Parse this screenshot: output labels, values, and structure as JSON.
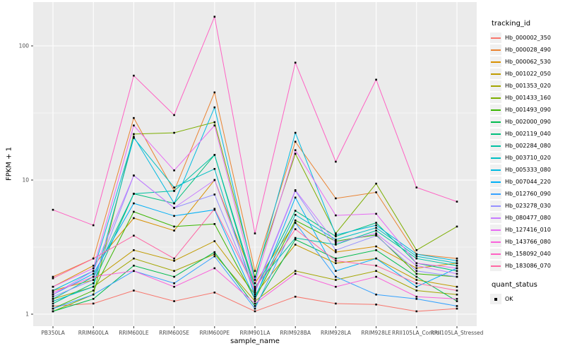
{
  "figure": {
    "background": "#FFFFFF",
    "panel_background": "#EBEBEB",
    "grid_color": "#FFFFFF",
    "axis_text_color": "#4D4D4D",
    "tick_color": "#333333",
    "point_color": "#000000"
  },
  "chart_data": {
    "type": "line",
    "title": "",
    "xlabel": "sample_name",
    "ylabel": "FPKM + 1",
    "y_scale": "log10",
    "y_ticks": [
      "1",
      "10",
      "100"
    ],
    "y_tick_values": [
      1,
      10,
      100
    ],
    "y_minor_values": [
      3.162,
      31.62
    ],
    "ylim": [
      0.81,
      212
    ],
    "grid": true,
    "legend_position": "right",
    "legend_title": "tracking_id",
    "x_categories": [
      "PB350LA",
      "RRIM600LA",
      "RRIM600LE",
      "RRIM600SE",
      "RRIM600PE",
      "RRIM901LA",
      "RRIM928BA",
      "RRIM928LA",
      "RRIM928LE",
      "RRII105LA_Control",
      "RRII105LA_Stressed"
    ],
    "series": [
      {
        "name": "Hb_000002_350",
        "color": "#F8766D",
        "values": [
          1.15,
          1.2,
          1.5,
          1.25,
          1.45,
          1.05,
          1.35,
          1.2,
          1.18,
          1.05,
          1.1
        ]
      },
      {
        "name": "Hb_000028_490",
        "color": "#EA8331",
        "values": [
          1.9,
          2.6,
          29,
          8.3,
          45,
          2.1,
          19.3,
          7.3,
          8.1,
          2.8,
          2.6
        ]
      },
      {
        "name": "Hb_000062_530",
        "color": "#D89000",
        "values": [
          1.6,
          2.3,
          5.2,
          4.2,
          10,
          1.7,
          4.8,
          2.9,
          3.2,
          2.2,
          2.4
        ]
      },
      {
        "name": "Hb_001022_050",
        "color": "#C09B00",
        "values": [
          1.5,
          1.8,
          3.0,
          2.5,
          3.5,
          1.4,
          3.3,
          2.4,
          2.6,
          1.8,
          1.6
        ]
      },
      {
        "name": "Hb_001353_020",
        "color": "#A3A500",
        "values": [
          1.3,
          1.6,
          2.6,
          2.1,
          2.8,
          1.25,
          2.1,
          1.8,
          2.1,
          1.5,
          1.4
        ]
      },
      {
        "name": "Hb_001433_160",
        "color": "#7CAE00",
        "values": [
          1.05,
          1.4,
          22,
          22.5,
          27,
          1.9,
          15.7,
          4.0,
          9.4,
          3.0,
          4.5
        ]
      },
      {
        "name": "Hb_001493_090",
        "color": "#39B600",
        "values": [
          1.1,
          1.5,
          5.8,
          4.5,
          4.7,
          1.3,
          5.0,
          3.5,
          3.9,
          2.0,
          1.9
        ]
      },
      {
        "name": "Hb_002000_090",
        "color": "#00BB4E",
        "values": [
          1.05,
          1.3,
          2.3,
          1.9,
          2.9,
          1.15,
          3.6,
          2.6,
          3.0,
          1.9,
          1.25
        ]
      },
      {
        "name": "Hb_002119_040",
        "color": "#00BF7D",
        "values": [
          1.2,
          1.7,
          7.9,
          6.7,
          15.4,
          1.5,
          5.9,
          3.8,
          4.8,
          2.4,
          2.1
        ]
      },
      {
        "name": "Hb_002284_080",
        "color": "#00C1A3",
        "values": [
          1.3,
          1.9,
          7.9,
          8.3,
          15.4,
          1.6,
          3.7,
          3.3,
          4.2,
          2.6,
          2.3
        ]
      },
      {
        "name": "Hb_003710_020",
        "color": "#00BFC4",
        "values": [
          1.25,
          1.6,
          20.6,
          8.8,
          12.1,
          1.35,
          5.5,
          3.6,
          4.4,
          2.7,
          2.4
        ]
      },
      {
        "name": "Hb_005333_080",
        "color": "#00BAE0",
        "values": [
          1.5,
          2.1,
          21,
          6.7,
          34.8,
          1.8,
          22.5,
          3.9,
          4.6,
          2.8,
          2.5
        ]
      },
      {
        "name": "Hb_007044_220",
        "color": "#00B0F6",
        "values": [
          1.4,
          2.0,
          6.7,
          5.4,
          6.0,
          1.3,
          7.4,
          2.1,
          2.6,
          1.6,
          2.2
        ]
      },
      {
        "name": "Hb_012760_090",
        "color": "#35A2FF",
        "values": [
          1.1,
          1.4,
          2.1,
          1.7,
          2.7,
          1.1,
          4.8,
          1.9,
          1.4,
          1.3,
          1.15
        ]
      },
      {
        "name": "Hb_023278_030",
        "color": "#9590FF",
        "values": [
          1.35,
          1.8,
          10.8,
          6.2,
          7.8,
          1.45,
          8.3,
          3.0,
          3.85,
          2.1,
          1.9
        ]
      },
      {
        "name": "Hb_080477_080",
        "color": "#C77CFF",
        "values": [
          1.4,
          2.1,
          10.8,
          6.2,
          10.0,
          1.5,
          8.4,
          3.4,
          4.0,
          2.3,
          2.0
        ]
      },
      {
        "name": "Hb_127416_010",
        "color": "#E76BF3",
        "values": [
          1.6,
          2.2,
          25.5,
          11.8,
          25.5,
          1.7,
          16.7,
          5.45,
          5.6,
          2.4,
          2.2
        ]
      },
      {
        "name": "Hb_143766_080",
        "color": "#FA62DB",
        "values": [
          1.45,
          1.9,
          2.1,
          1.6,
          2.2,
          1.2,
          2.0,
          1.6,
          1.9,
          1.35,
          1.3
        ]
      },
      {
        "name": "Hb_158092_040",
        "color": "#FF61C3",
        "values": [
          6.0,
          4.6,
          60,
          30.5,
          165,
          4.0,
          75,
          13.7,
          56,
          8.8,
          6.9
        ]
      },
      {
        "name": "Hb_183086_070",
        "color": "#FF67A4",
        "values": [
          1.85,
          2.6,
          3.85,
          2.6,
          6.1,
          1.55,
          4.3,
          2.5,
          2.3,
          1.7,
          1.5
        ]
      }
    ],
    "quant_legend": {
      "title": "quant_status",
      "items": [
        "OK"
      ],
      "marker_color": "#000000"
    }
  }
}
